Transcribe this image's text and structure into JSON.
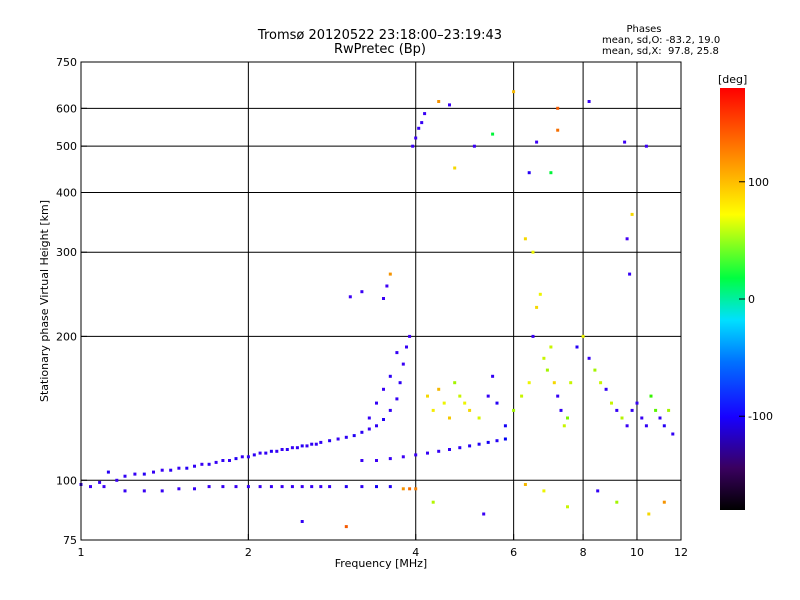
{
  "chart_data": {
    "type": "scatter",
    "title": "Tromsø 20120522 23:18:00–23:19:43",
    "subtitle": "RwPretec (Bp)",
    "xlabel": "Frequency [MHz]",
    "ylabel": "Stationary phase Virtual Height [km]",
    "x_scale": "log",
    "y_scale": "log",
    "xlim": [
      1,
      12
    ],
    "ylim": [
      75,
      750
    ],
    "x_ticks": [
      1,
      2,
      4,
      6,
      8,
      10,
      12
    ],
    "y_ticks": [
      75,
      100,
      200,
      300,
      400,
      500,
      600,
      750
    ],
    "grid": true,
    "colorbar": {
      "label": "[deg]",
      "range": [
        -180,
        180
      ],
      "ticks": [
        100,
        0,
        -100
      ],
      "colormap": "rainbow"
    },
    "phase_stats": {
      "heading": "Phases",
      "o_line": "mean, sd,O: -83.2, 19.0",
      "x_line": "mean, sd,X:  97.8, 25.8"
    },
    "series": [
      {
        "points": [
          [
            1.0,
            98,
            -110
          ],
          [
            1.04,
            97,
            -115
          ],
          [
            1.08,
            99,
            -108
          ],
          [
            1.12,
            104,
            -100
          ],
          [
            1.16,
            100,
            -112
          ],
          [
            1.2,
            102,
            -105
          ],
          [
            1.25,
            103,
            -110
          ],
          [
            1.3,
            103,
            -100
          ],
          [
            1.35,
            104,
            -108
          ],
          [
            1.4,
            105,
            -112
          ],
          [
            1.45,
            105,
            -104
          ],
          [
            1.5,
            106,
            -110
          ],
          [
            1.55,
            106,
            -100
          ],
          [
            1.6,
            107,
            -106
          ],
          [
            1.65,
            108,
            -112
          ],
          [
            1.7,
            108,
            -104
          ],
          [
            1.75,
            109,
            -110
          ],
          [
            1.8,
            110,
            -105
          ],
          [
            1.85,
            110,
            -108
          ],
          [
            1.9,
            111,
            -100
          ],
          [
            1.95,
            112,
            -110
          ],
          [
            2.0,
            112,
            -106
          ],
          [
            2.05,
            113,
            -104
          ],
          [
            2.1,
            114,
            -110
          ],
          [
            2.15,
            114,
            -105
          ],
          [
            2.2,
            115,
            -100
          ],
          [
            2.25,
            115,
            -108
          ],
          [
            2.3,
            116,
            -112
          ],
          [
            2.35,
            116,
            -104
          ],
          [
            2.4,
            117,
            -110
          ],
          [
            2.45,
            117,
            -105
          ],
          [
            2.5,
            118,
            -100
          ],
          [
            2.55,
            118,
            -108
          ],
          [
            2.6,
            119,
            -104
          ],
          [
            2.65,
            119,
            -110
          ],
          [
            2.7,
            120,
            -106
          ],
          [
            2.8,
            121,
            -100
          ],
          [
            2.9,
            122,
            -108
          ],
          [
            3.0,
            123,
            -104
          ],
          [
            3.1,
            124,
            -98
          ],
          [
            3.2,
            126,
            -102
          ],
          [
            3.3,
            128,
            -110
          ],
          [
            3.4,
            130,
            -104
          ],
          [
            3.5,
            134,
            -98
          ],
          [
            3.6,
            140,
            -106
          ],
          [
            3.7,
            148,
            -110
          ],
          [
            3.75,
            160,
            -104
          ],
          [
            3.8,
            175,
            -112
          ],
          [
            3.85,
            190,
            -108
          ],
          [
            3.9,
            200,
            -115
          ],
          [
            1.1,
            97,
            -112
          ],
          [
            1.2,
            95,
            -110
          ],
          [
            1.3,
            95,
            -112
          ],
          [
            1.4,
            95,
            -108
          ],
          [
            1.5,
            96,
            -112
          ],
          [
            1.6,
            96,
            -110
          ],
          [
            1.7,
            97,
            -112
          ],
          [
            1.8,
            97,
            -108
          ],
          [
            1.9,
            97,
            -112
          ],
          [
            2.0,
            97,
            -110
          ],
          [
            2.1,
            97,
            -112
          ],
          [
            2.2,
            97,
            -108
          ],
          [
            2.3,
            97,
            -112
          ],
          [
            2.4,
            97,
            -110
          ],
          [
            2.5,
            97,
            -112
          ],
          [
            2.6,
            97,
            -108
          ],
          [
            2.7,
            97,
            -112
          ],
          [
            2.8,
            97,
            -110
          ],
          [
            3.0,
            97,
            -100
          ],
          [
            3.2,
            97,
            -104
          ],
          [
            3.4,
            97,
            -95
          ],
          [
            3.6,
            97,
            -98
          ],
          [
            3.8,
            96,
            140
          ],
          [
            3.9,
            96,
            150
          ],
          [
            4.0,
            96,
            145
          ],
          [
            3.2,
            110,
            -112
          ],
          [
            3.4,
            110,
            -115
          ],
          [
            3.6,
            111,
            -112
          ],
          [
            3.8,
            112,
            -115
          ],
          [
            4.0,
            113,
            -112
          ],
          [
            4.2,
            114,
            -110
          ],
          [
            4.4,
            115,
            -108
          ],
          [
            4.6,
            116,
            -106
          ],
          [
            4.8,
            117,
            -104
          ],
          [
            5.0,
            118,
            -100
          ],
          [
            5.2,
            119,
            -98
          ],
          [
            5.4,
            120,
            -95
          ],
          [
            5.6,
            121,
            -100
          ],
          [
            5.8,
            122,
            -90
          ],
          [
            3.3,
            135,
            -110
          ],
          [
            3.4,
            145,
            -106
          ],
          [
            3.5,
            155,
            -112
          ],
          [
            3.6,
            165,
            -104
          ],
          [
            3.7,
            185,
            -108
          ],
          [
            3.5,
            240,
            -112
          ],
          [
            3.55,
            255,
            -115
          ],
          [
            3.6,
            270,
            140
          ],
          [
            3.05,
            242,
            -115
          ],
          [
            3.2,
            248,
            -112
          ],
          [
            3.95,
            500,
            -112
          ],
          [
            4.0,
            520,
            -115
          ],
          [
            4.05,
            545,
            -110
          ],
          [
            4.1,
            560,
            -108
          ],
          [
            4.15,
            585,
            -112
          ],
          [
            4.2,
            150,
            120
          ],
          [
            4.3,
            140,
            115
          ],
          [
            4.4,
            155,
            130
          ],
          [
            4.5,
            145,
            110
          ],
          [
            4.6,
            135,
            125
          ],
          [
            4.7,
            160,
            90
          ],
          [
            4.8,
            150,
            100
          ],
          [
            4.9,
            145,
            110
          ],
          [
            5.0,
            140,
            120
          ],
          [
            5.2,
            135,
            105
          ],
          [
            5.4,
            150,
            -110
          ],
          [
            5.5,
            165,
            -105
          ],
          [
            5.6,
            145,
            -100
          ],
          [
            5.8,
            130,
            -95
          ],
          [
            6.0,
            140,
            90
          ],
          [
            6.2,
            150,
            100
          ],
          [
            6.4,
            160,
            110
          ],
          [
            6.5,
            200,
            -112
          ],
          [
            6.6,
            230,
            120
          ],
          [
            6.7,
            245,
            110
          ],
          [
            6.8,
            180,
            100
          ],
          [
            6.9,
            170,
            90
          ],
          [
            7.0,
            190,
            100
          ],
          [
            7.1,
            160,
            120
          ],
          [
            7.2,
            150,
            -110
          ],
          [
            7.3,
            140,
            -105
          ],
          [
            7.4,
            130,
            100
          ],
          [
            7.5,
            135,
            80
          ],
          [
            7.6,
            160,
            100
          ],
          [
            7.8,
            190,
            -100
          ],
          [
            8.0,
            200,
            110
          ],
          [
            8.2,
            180,
            -110
          ],
          [
            8.4,
            170,
            90
          ],
          [
            8.6,
            160,
            100
          ],
          [
            8.8,
            155,
            -105
          ],
          [
            9.0,
            145,
            100
          ],
          [
            9.2,
            140,
            -110
          ],
          [
            9.4,
            135,
            95
          ],
          [
            9.6,
            130,
            -112
          ],
          [
            9.8,
            140,
            -108
          ],
          [
            10.0,
            145,
            -110
          ],
          [
            10.2,
            135,
            -112
          ],
          [
            10.4,
            130,
            -105
          ],
          [
            10.6,
            150,
            60
          ],
          [
            10.8,
            140,
            70
          ],
          [
            11.0,
            135,
            -110
          ],
          [
            11.2,
            130,
            -100
          ],
          [
            11.4,
            140,
            90
          ],
          [
            11.6,
            125,
            -105
          ],
          [
            5.5,
            530,
            30
          ],
          [
            6.6,
            510,
            -115
          ],
          [
            6.4,
            440,
            -100
          ],
          [
            6.3,
            320,
            120
          ],
          [
            6.5,
            300,
            110
          ],
          [
            7.2,
            600,
            155
          ],
          [
            7.2,
            540,
            150
          ],
          [
            7.0,
            440,
            30
          ],
          [
            8.2,
            620,
            -110
          ],
          [
            9.5,
            510,
            -115
          ],
          [
            9.6,
            320,
            -120
          ],
          [
            9.7,
            270,
            -110
          ],
          [
            9.8,
            360,
            120
          ],
          [
            10.4,
            500,
            -115
          ],
          [
            4.6,
            610,
            -112
          ],
          [
            4.4,
            620,
            140
          ],
          [
            4.7,
            450,
            120
          ],
          [
            6.0,
            650,
            130
          ],
          [
            5.1,
            500,
            -112
          ],
          [
            3.0,
            80,
            155
          ],
          [
            2.5,
            82,
            -105
          ],
          [
            4.3,
            90,
            95
          ],
          [
            5.3,
            85,
            -112
          ],
          [
            6.3,
            98,
            130
          ],
          [
            6.8,
            95,
            110
          ],
          [
            7.5,
            88,
            100
          ],
          [
            8.5,
            95,
            -105
          ],
          [
            9.2,
            90,
            90
          ],
          [
            10.5,
            85,
            120
          ],
          [
            11.2,
            90,
            140
          ]
        ]
      }
    ]
  }
}
